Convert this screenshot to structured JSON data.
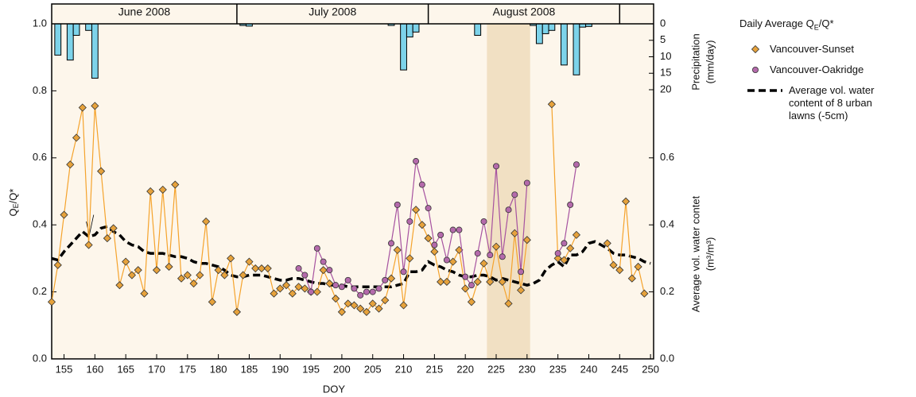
{
  "chart_data": {
    "type": "line",
    "xlabel": "DOY",
    "ylabel": [
      "Q",
      "E",
      "/Q*"
    ],
    "y2label": "Average vol. water contet",
    "y2units": "(m³/m³)",
    "legend_title": [
      "Daily Average Q",
      "E",
      "/Q*"
    ],
    "x": [
      153,
      154,
      155,
      156,
      157,
      158,
      159,
      160,
      161,
      162,
      163,
      164,
      165,
      166,
      167,
      168,
      169,
      170,
      171,
      172,
      173,
      174,
      175,
      176,
      177,
      178,
      179,
      180,
      181,
      182,
      183,
      184,
      185,
      186,
      187,
      188,
      189,
      190,
      191,
      192,
      193,
      194,
      195,
      196,
      197,
      198,
      199,
      200,
      201,
      202,
      203,
      204,
      205,
      206,
      207,
      208,
      209,
      210,
      211,
      212,
      213,
      214,
      215,
      216,
      217,
      218,
      219,
      220,
      221,
      222,
      223,
      224,
      225,
      226,
      227,
      228,
      229,
      230,
      231,
      232,
      233,
      234,
      235,
      236,
      237,
      238,
      239,
      240,
      241,
      242,
      243,
      244,
      245,
      246,
      247,
      248,
      249,
      250
    ],
    "xlim": [
      153,
      250.5
    ],
    "xticks": [
      155,
      160,
      165,
      170,
      175,
      180,
      185,
      190,
      195,
      200,
      205,
      210,
      215,
      220,
      225,
      230,
      235,
      240,
      245,
      250
    ],
    "ylim": [
      0,
      1
    ],
    "yticks": [
      {
        "value": 0,
        "label": "0.0"
      },
      0.2,
      0.4,
      0.6,
      0.8,
      {
        "value": 1,
        "label": "1.0"
      }
    ],
    "y2lim": [
      0,
      1
    ],
    "y2ticks": [
      {
        "value": 0,
        "label": "0.0"
      },
      0.2,
      0.4,
      0.6
    ],
    "highlight": [
      223.5,
      230.5
    ],
    "months": {
      "labels": [
        "June 2008",
        "July 2008",
        "August 2008"
      ],
      "edges": [
        183,
        214,
        245
      ]
    },
    "series": [
      {
        "name": "Vancouver-Sunset",
        "color": "#f5a32c",
        "marker_color": "#e6a23c",
        "marker": "diamond",
        "values": [
          0.17,
          0.28,
          0.43,
          0.58,
          0.66,
          0.75,
          0.34,
          0.755,
          0.56,
          0.36,
          0.39,
          0.22,
          0.29,
          0.25,
          0.265,
          0.195,
          0.5,
          0.265,
          0.505,
          0.275,
          0.52,
          0.24,
          0.25,
          0.225,
          0.25,
          0.41,
          0.17,
          0.265,
          0.25,
          0.3,
          0.14,
          0.25,
          0.29,
          0.27,
          0.27,
          0.27,
          0.195,
          0.21,
          0.22,
          0.195,
          0.215,
          0.21,
          0.2,
          0.2,
          0.265,
          0.225,
          0.18,
          0.14,
          0.165,
          0.16,
          0.15,
          0.14,
          0.165,
          0.15,
          0.175,
          0.24,
          0.325,
          0.16,
          0.3,
          0.445,
          0.4,
          0.36,
          0.32,
          0.23,
          0.23,
          0.29,
          0.325,
          0.21,
          0.17,
          0.23,
          0.285,
          0.23,
          0.335,
          0.23,
          0.165,
          0.375,
          0.205,
          0.355,
          null,
          null,
          null,
          0.76,
          0.3,
          0.295,
          0.33,
          0.37,
          null,
          null,
          null,
          null,
          0.345,
          0.28,
          0.265,
          0.47,
          0.24,
          0.275,
          0.195,
          null
        ]
      },
      {
        "name": "Vancouver-Oakridge",
        "color": "#a652a0",
        "marker_color": "#b46aab",
        "marker": "circle",
        "values": [
          null,
          null,
          null,
          null,
          null,
          null,
          null,
          null,
          null,
          null,
          null,
          null,
          null,
          null,
          null,
          null,
          null,
          null,
          null,
          null,
          null,
          null,
          null,
          null,
          null,
          null,
          null,
          null,
          null,
          null,
          null,
          null,
          null,
          null,
          null,
          null,
          null,
          null,
          null,
          null,
          0.27,
          0.25,
          0.2,
          0.33,
          0.29,
          0.265,
          0.22,
          0.215,
          0.235,
          0.21,
          0.19,
          0.2,
          0.2,
          0.21,
          0.235,
          0.345,
          0.46,
          0.26,
          0.41,
          0.59,
          0.52,
          0.45,
          0.34,
          0.37,
          0.295,
          0.385,
          0.385,
          0.245,
          0.22,
          0.315,
          0.41,
          0.31,
          0.575,
          0.305,
          0.445,
          0.49,
          0.26,
          0.525,
          null,
          null,
          null,
          null,
          0.315,
          0.345,
          0.46,
          0.58,
          null,
          null,
          null,
          null,
          null,
          null,
          null,
          null,
          null,
          null,
          null,
          null
        ]
      },
      {
        "name": "Average vol. water content of 8 urban lawns (-5cm)",
        "color": "#000000",
        "style": "dashed",
        "axis": "y2",
        "values": [
          0.3,
          0.295,
          0.32,
          0.34,
          0.36,
          0.38,
          0.365,
          0.37,
          0.39,
          0.395,
          0.38,
          0.37,
          0.35,
          0.34,
          0.335,
          0.32,
          0.315,
          0.315,
          0.315,
          0.31,
          0.305,
          0.305,
          0.3,
          0.29,
          0.285,
          0.285,
          0.28,
          0.275,
          0.265,
          0.25,
          0.245,
          0.245,
          0.25,
          0.25,
          0.25,
          0.245,
          0.24,
          0.235,
          0.235,
          0.24,
          0.24,
          0.235,
          0.23,
          0.225,
          0.225,
          0.22,
          0.22,
          0.22,
          0.215,
          0.215,
          0.215,
          0.215,
          0.215,
          0.215,
          0.215,
          0.215,
          0.22,
          0.225,
          0.26,
          0.26,
          0.265,
          0.29,
          0.28,
          0.275,
          0.265,
          0.26,
          0.25,
          0.245,
          0.245,
          0.25,
          0.25,
          0.245,
          0.235,
          0.24,
          0.235,
          0.23,
          0.225,
          0.22,
          0.225,
          0.235,
          0.265,
          0.28,
          0.29,
          0.275,
          0.31,
          0.31,
          0.32,
          0.345,
          0.35,
          0.34,
          0.33,
          0.315,
          0.31,
          0.31,
          0.305,
          0.3,
          0.29,
          0.285
        ]
      }
    ],
    "precipitation": {
      "label": "Precipitation",
      "units": "(mm/day)",
      "color": "#7dd3ea",
      "x": [
        154,
        156,
        157,
        159,
        160,
        184,
        185,
        208,
        210,
        211,
        212,
        222,
        231,
        232,
        233,
        234,
        236,
        238,
        239,
        240
      ],
      "values": [
        9.5,
        11,
        3.5,
        2,
        16.5,
        0.5,
        0.7,
        0.5,
        14,
        4,
        2.5,
        3.5,
        0.5,
        6,
        3,
        2,
        12.5,
        15.5,
        1,
        0.8
      ],
      "ylim": [
        0,
        20
      ],
      "yticks": [
        0,
        5,
        10,
        15,
        20
      ]
    }
  }
}
